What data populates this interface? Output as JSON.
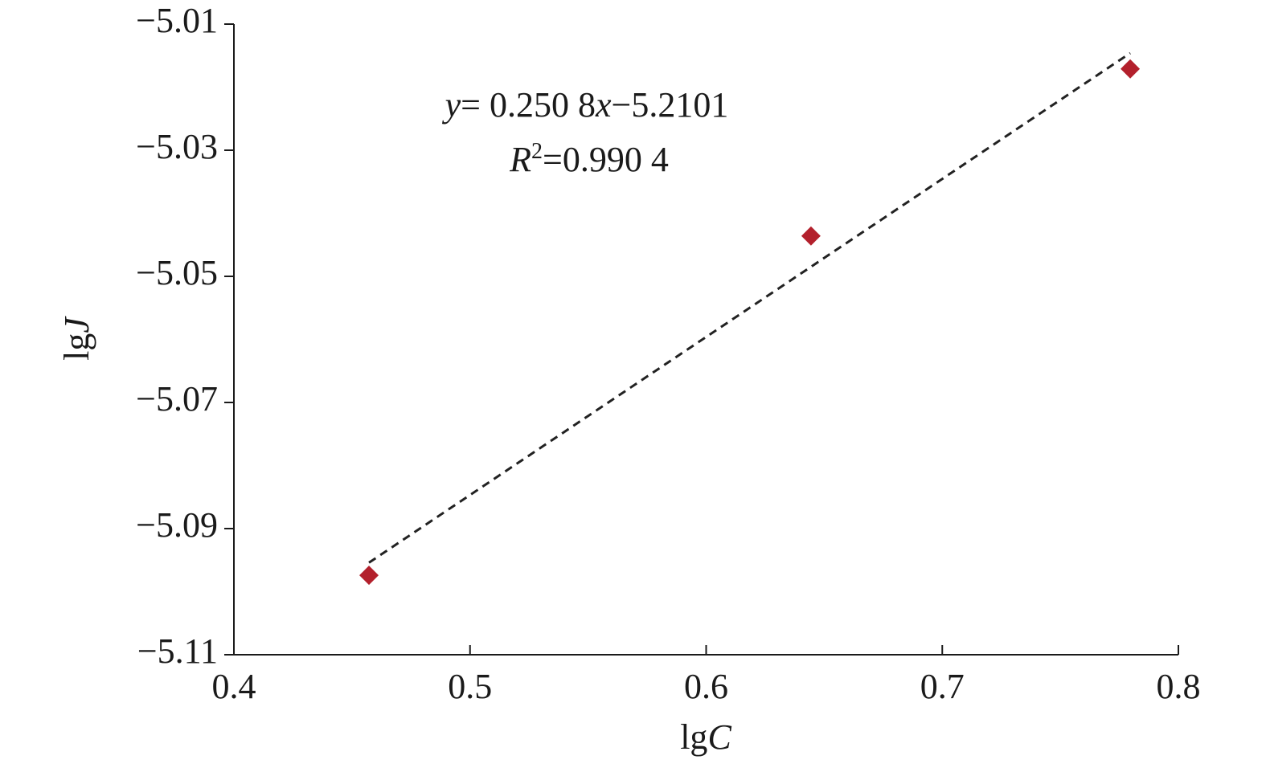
{
  "chart_data": {
    "type": "scatter",
    "x_label": [
      "lg",
      "C"
    ],
    "y_label": [
      "lg",
      "J"
    ],
    "xlim": [
      0.4,
      0.8
    ],
    "ylim": [
      -5.11,
      -5.01
    ],
    "xticks": [
      0.4,
      0.5,
      0.6,
      0.7,
      0.8
    ],
    "yticks": [
      {
        "value": -5.01,
        "label": "−5.01"
      },
      {
        "value": -5.03,
        "label": "−5.03"
      },
      {
        "value": -5.05,
        "label": "−5.05"
      },
      {
        "value": -5.07,
        "label": "−5.07"
      },
      {
        "value": -5.09,
        "label": "−5.09"
      },
      {
        "value": -5.11,
        "label": "−5.11"
      }
    ],
    "series": [
      {
        "color": "#b3202c",
        "marker": "diamond",
        "x": [
          0.4572,
          0.6444,
          0.7796
        ],
        "values": [
          -5.0974,
          -5.0436,
          -5.0171
        ]
      }
    ],
    "trendline": {
      "color": "#222222",
      "dashed": true,
      "x": [
        0.4572,
        0.7796
      ],
      "values": [
        -5.0954,
        -5.0146
      ]
    },
    "annotation": {
      "equation": [
        "y",
        "= 0.250 8",
        "x",
        "−5.2101"
      ],
      "r_squared": [
        "R",
        "2",
        "=0.990 4"
      ]
    }
  }
}
